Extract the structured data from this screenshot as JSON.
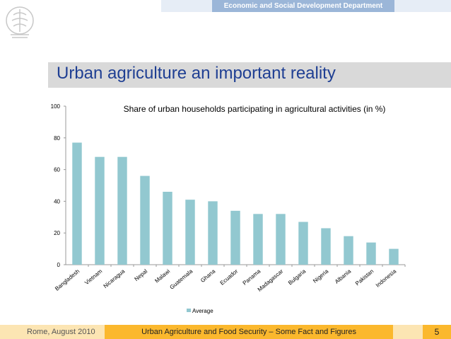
{
  "header": {
    "department": "Economic and Social Development Department"
  },
  "slide": {
    "title": "Urban agriculture an important reality"
  },
  "footer": {
    "left": "Rome, August 2010",
    "center": "Urban Agriculture and Food Security – Some Fact and Figures",
    "page": "5"
  },
  "colors": {
    "bar": "#92c8d0",
    "title": "#1f3f93",
    "header_accent": "#9bb6d8",
    "footer_accent": "#fbb82d"
  },
  "chart_data": {
    "type": "bar",
    "title": "Share of urban households participating in agricultural activities (in %)",
    "xlabel": "",
    "ylabel": "",
    "ylim": [
      0,
      100
    ],
    "yticks": [
      0,
      20,
      40,
      60,
      80,
      100
    ],
    "grid": false,
    "legend": {
      "position": "bottom",
      "entries": [
        "Average"
      ]
    },
    "categories": [
      "Bangladesh",
      "Vietnam",
      "Nicaragua",
      "Nepal",
      "Malawi",
      "Guatemala",
      "Ghana",
      "Ecuador",
      "Panama",
      "Madagascar",
      "Bulgaria",
      "Nigeria",
      "Albania",
      "Pakistan",
      "Indonesia"
    ],
    "series": [
      {
        "name": "Average",
        "values": [
          77,
          68,
          68,
          56,
          46,
          41,
          40,
          34,
          32,
          32,
          27,
          23,
          18,
          14,
          10
        ]
      }
    ]
  }
}
